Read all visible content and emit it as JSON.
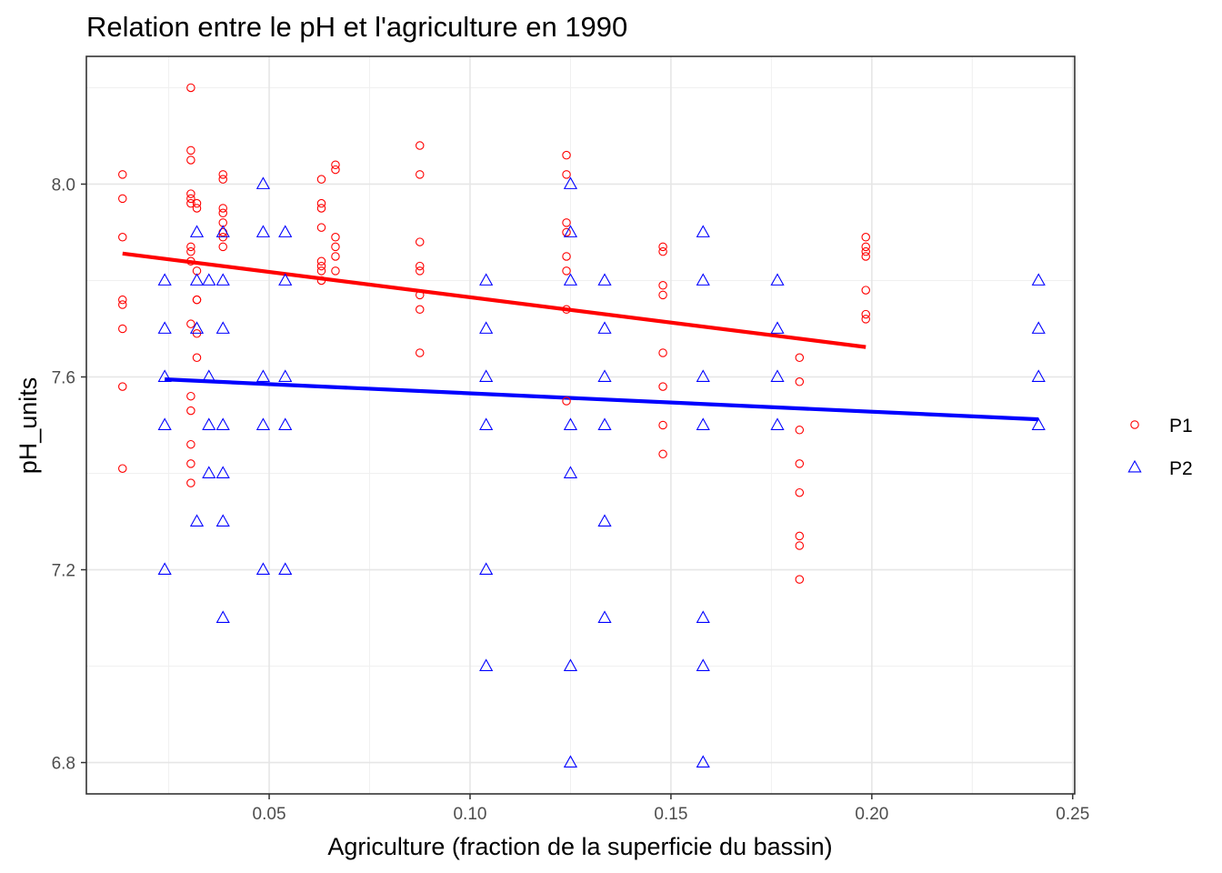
{
  "chart_data": {
    "type": "scatter",
    "title": "Relation entre le pH et l'agriculture en 1990",
    "xlabel": "Agriculture (fraction de la superficie du bassin)",
    "ylabel": "pH_units",
    "xlim": [
      0.0045,
      0.2505
    ],
    "ylim": [
      6.735,
      8.265
    ],
    "xticks": [
      0.05,
      0.1,
      0.15,
      0.2,
      0.25
    ],
    "xtick_labels": [
      "0.05",
      "0.10",
      "0.15",
      "0.20",
      "0.25"
    ],
    "yticks": [
      6.8,
      7.2,
      7.6,
      8.0
    ],
    "ytick_labels": [
      "6.8",
      "7.2",
      "7.6",
      "8.0"
    ],
    "grid": true,
    "legend_position": "right",
    "series": [
      {
        "name": "P1",
        "color": "#ff0000",
        "marker": "circle",
        "points": [
          [
            0.0135,
            8.02
          ],
          [
            0.0135,
            7.97
          ],
          [
            0.0135,
            7.89
          ],
          [
            0.0135,
            7.76
          ],
          [
            0.0135,
            7.75
          ],
          [
            0.0135,
            7.7
          ],
          [
            0.0135,
            7.58
          ],
          [
            0.0135,
            7.41
          ],
          [
            0.0305,
            8.2
          ],
          [
            0.0305,
            8.07
          ],
          [
            0.0305,
            8.05
          ],
          [
            0.0305,
            7.98
          ],
          [
            0.0305,
            7.97
          ],
          [
            0.0305,
            7.96
          ],
          [
            0.0305,
            7.87
          ],
          [
            0.0305,
            7.86
          ],
          [
            0.0305,
            7.84
          ],
          [
            0.0305,
            7.71
          ],
          [
            0.0305,
            7.56
          ],
          [
            0.0305,
            7.53
          ],
          [
            0.0305,
            7.46
          ],
          [
            0.0305,
            7.42
          ],
          [
            0.0305,
            7.38
          ],
          [
            0.032,
            7.96
          ],
          [
            0.032,
            7.95
          ],
          [
            0.032,
            7.82
          ],
          [
            0.032,
            7.76
          ],
          [
            0.032,
            7.76
          ],
          [
            0.032,
            7.69
          ],
          [
            0.032,
            7.64
          ],
          [
            0.0385,
            8.02
          ],
          [
            0.0385,
            8.01
          ],
          [
            0.0385,
            7.95
          ],
          [
            0.0385,
            7.94
          ],
          [
            0.0385,
            7.92
          ],
          [
            0.0385,
            7.9
          ],
          [
            0.0385,
            7.89
          ],
          [
            0.0385,
            7.87
          ],
          [
            0.063,
            8.01
          ],
          [
            0.063,
            7.96
          ],
          [
            0.063,
            7.95
          ],
          [
            0.063,
            7.91
          ],
          [
            0.063,
            7.84
          ],
          [
            0.063,
            7.83
          ],
          [
            0.063,
            7.82
          ],
          [
            0.063,
            7.8
          ],
          [
            0.0665,
            8.04
          ],
          [
            0.0665,
            8.03
          ],
          [
            0.0665,
            7.89
          ],
          [
            0.0665,
            7.87
          ],
          [
            0.0665,
            7.85
          ],
          [
            0.0665,
            7.82
          ],
          [
            0.0875,
            8.08
          ],
          [
            0.0875,
            8.02
          ],
          [
            0.0875,
            7.88
          ],
          [
            0.0875,
            7.83
          ],
          [
            0.0875,
            7.82
          ],
          [
            0.0875,
            7.77
          ],
          [
            0.0875,
            7.74
          ],
          [
            0.0875,
            7.65
          ],
          [
            0.124,
            8.06
          ],
          [
            0.124,
            8.02
          ],
          [
            0.124,
            7.92
          ],
          [
            0.124,
            7.9
          ],
          [
            0.124,
            7.85
          ],
          [
            0.124,
            7.82
          ],
          [
            0.124,
            7.74
          ],
          [
            0.124,
            7.55
          ],
          [
            0.148,
            7.87
          ],
          [
            0.148,
            7.86
          ],
          [
            0.148,
            7.79
          ],
          [
            0.148,
            7.77
          ],
          [
            0.148,
            7.65
          ],
          [
            0.148,
            7.58
          ],
          [
            0.148,
            7.5
          ],
          [
            0.148,
            7.44
          ],
          [
            0.182,
            7.64
          ],
          [
            0.182,
            7.59
          ],
          [
            0.182,
            7.49
          ],
          [
            0.182,
            7.42
          ],
          [
            0.182,
            7.36
          ],
          [
            0.182,
            7.27
          ],
          [
            0.182,
            7.25
          ],
          [
            0.182,
            7.18
          ],
          [
            0.1985,
            7.89
          ],
          [
            0.1985,
            7.87
          ],
          [
            0.1985,
            7.86
          ],
          [
            0.1985,
            7.85
          ],
          [
            0.1985,
            7.78
          ],
          [
            0.1985,
            7.73
          ],
          [
            0.1985,
            7.72
          ]
        ],
        "fit_line": [
          [
            0.0135,
            7.856
          ],
          [
            0.1985,
            7.662
          ]
        ]
      },
      {
        "name": "P2",
        "color": "#0000ff",
        "marker": "triangle",
        "points": [
          [
            0.024,
            7.8
          ],
          [
            0.024,
            7.7
          ],
          [
            0.024,
            7.6
          ],
          [
            0.024,
            7.5
          ],
          [
            0.024,
            7.2
          ],
          [
            0.032,
            7.9
          ],
          [
            0.032,
            7.8
          ],
          [
            0.032,
            7.7
          ],
          [
            0.032,
            7.3
          ],
          [
            0.035,
            7.8
          ],
          [
            0.035,
            7.6
          ],
          [
            0.035,
            7.5
          ],
          [
            0.035,
            7.4
          ],
          [
            0.0385,
            7.9
          ],
          [
            0.0385,
            7.8
          ],
          [
            0.0385,
            7.7
          ],
          [
            0.0385,
            7.5
          ],
          [
            0.0385,
            7.4
          ],
          [
            0.0385,
            7.3
          ],
          [
            0.0385,
            7.1
          ],
          [
            0.0485,
            8.0
          ],
          [
            0.0485,
            7.9
          ],
          [
            0.0485,
            7.6
          ],
          [
            0.0485,
            7.5
          ],
          [
            0.0485,
            7.2
          ],
          [
            0.054,
            7.9
          ],
          [
            0.054,
            7.8
          ],
          [
            0.054,
            7.6
          ],
          [
            0.054,
            7.5
          ],
          [
            0.054,
            7.2
          ],
          [
            0.104,
            7.8
          ],
          [
            0.104,
            7.7
          ],
          [
            0.104,
            7.6
          ],
          [
            0.104,
            7.5
          ],
          [
            0.104,
            7.2
          ],
          [
            0.104,
            7.0
          ],
          [
            0.125,
            8.0
          ],
          [
            0.125,
            7.9
          ],
          [
            0.125,
            7.8
          ],
          [
            0.125,
            7.5
          ],
          [
            0.125,
            7.4
          ],
          [
            0.125,
            7.0
          ],
          [
            0.125,
            6.8
          ],
          [
            0.1335,
            7.8
          ],
          [
            0.1335,
            7.7
          ],
          [
            0.1335,
            7.6
          ],
          [
            0.1335,
            7.5
          ],
          [
            0.1335,
            7.3
          ],
          [
            0.1335,
            7.1
          ],
          [
            0.158,
            7.9
          ],
          [
            0.158,
            7.8
          ],
          [
            0.158,
            7.6
          ],
          [
            0.158,
            7.5
          ],
          [
            0.158,
            7.1
          ],
          [
            0.158,
            7.0
          ],
          [
            0.158,
            6.8
          ],
          [
            0.1765,
            7.8
          ],
          [
            0.1765,
            7.7
          ],
          [
            0.1765,
            7.6
          ],
          [
            0.1765,
            7.5
          ],
          [
            0.2415,
            7.8
          ],
          [
            0.2415,
            7.7
          ],
          [
            0.2415,
            7.6
          ],
          [
            0.2415,
            7.5
          ]
        ],
        "fit_line": [
          [
            0.024,
            7.595
          ],
          [
            0.2415,
            7.512
          ]
        ]
      }
    ]
  }
}
